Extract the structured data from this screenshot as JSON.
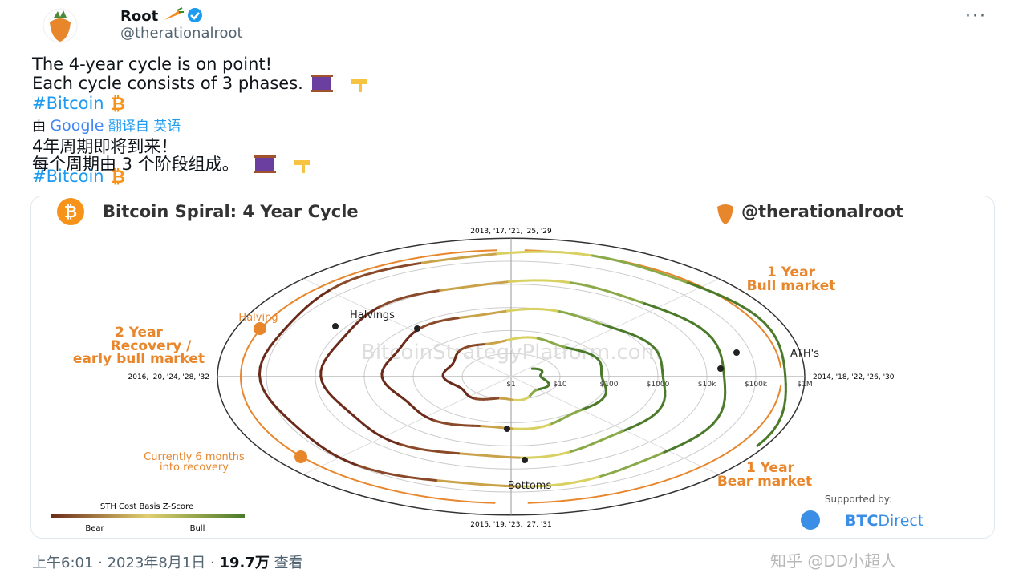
{
  "tweet": {
    "name": "Root",
    "handle": "@therationalroot",
    "lines": [
      "The 4-year cycle is on point!",
      "Each cycle consists of 3 phases."
    ],
    "hashtag": "#Bitcoin",
    "translated_by": "由",
    "google": "Google",
    "translate_note": "翻译自 英语",
    "translated_lines": [
      "4年周期即将到来！",
      "每个周期由 3 个阶段组成。"
    ],
    "translated_hashtag": "#Bitcoin",
    "time": "上午6:01 · 2023年8月1日 ·",
    "views": "19.7万",
    "views_label": "查看",
    "watermark": "知乎 @DD小超人"
  },
  "image": {
    "title": "Bitcoin Spiral: 4 Year Cycle",
    "credit": "@therationalroot",
    "site": "BitcoinStrategyPlatform.com",
    "top_label": "2013, '17, '21, '25, '29",
    "right_label": "2014, '18, '22, '26, '30",
    "bottom_label": "2015, '19, '23, '27, '31",
    "left_label": "2016, '20, '24, '28, '32",
    "rings": [
      "$1",
      "$10",
      "$100",
      "$1000",
      "$10k",
      "$100k",
      "$1M"
    ],
    "bull_phase": [
      "1 Year",
      "Bull market"
    ],
    "bear_phase": [
      "1 Year",
      "Bear market"
    ],
    "recovery_phase": [
      "2 Year",
      "Recovery /",
      "early bull market"
    ],
    "halving": "Halving",
    "halvings": "Halvings",
    "aths": "ATH's",
    "bottoms": "Bottoms",
    "current": [
      "Currently 6 months",
      "into recovery"
    ],
    "legend_title": "STH Cost Basis Z-Score",
    "legend": [
      "Bear",
      "Bull"
    ],
    "supported_by": "Supported by:",
    "sponsor_bold": "BTC",
    "sponsor": "Direct"
  }
}
